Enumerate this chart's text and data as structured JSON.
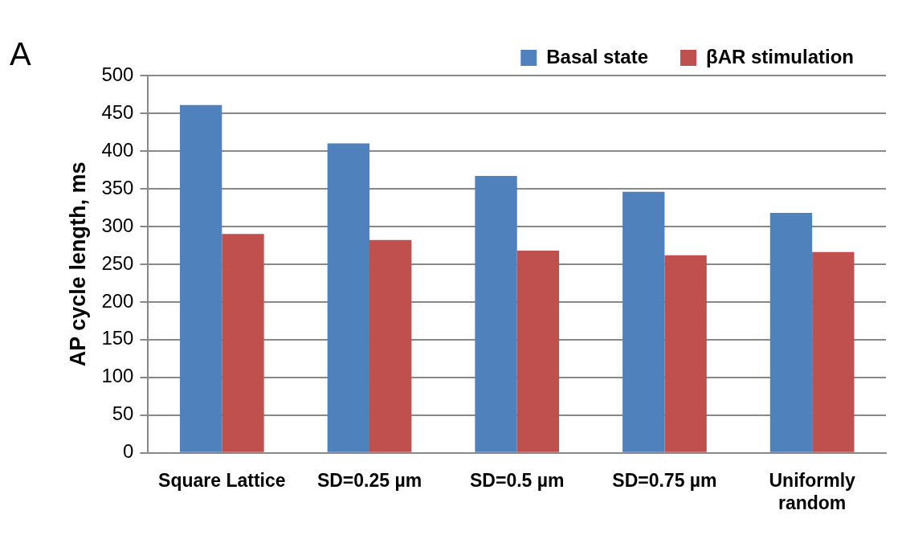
{
  "chart_data": {
    "type": "bar",
    "ylabel": "AP cycle length, ms",
    "annotations": [
      "A"
    ],
    "categories": [
      "Square Lattice",
      "SD=0.25 µm",
      "SD=0.5 µm",
      "SD=0.75 µm",
      "Uniformly random"
    ],
    "series": [
      {
        "name": "Basal state",
        "color": "#4f81bd",
        "values": [
          461,
          410,
          367,
          346,
          318
        ]
      },
      {
        "name": "βAR stimulation",
        "color": "#c0504d",
        "values": [
          290,
          282,
          268,
          262,
          266
        ]
      }
    ],
    "ylim": [
      0,
      500
    ],
    "yticks": [
      0,
      50,
      100,
      150,
      200,
      250,
      300,
      350,
      400,
      450,
      500
    ],
    "grid": "y",
    "legend": "top right"
  }
}
